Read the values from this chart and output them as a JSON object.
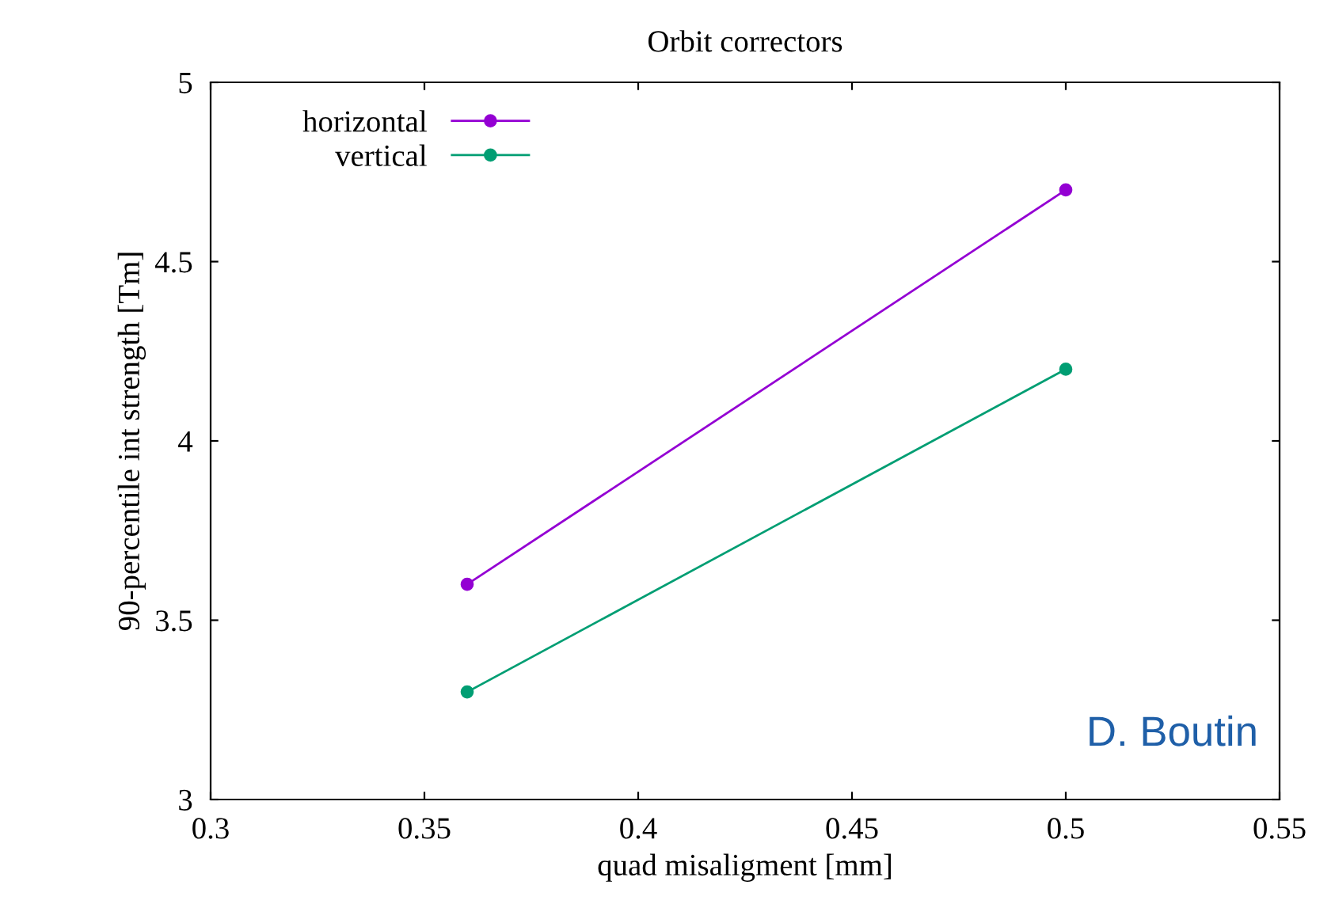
{
  "chart_data": {
    "type": "line",
    "title": "Orbit correctors",
    "xlabel": "quad misaligment [mm]",
    "ylabel": "90-percentile int strength [Tm]",
    "x": [
      0.36,
      0.5
    ],
    "series": [
      {
        "name": "horizontal",
        "color": "#9400d3",
        "values": [
          3.6,
          4.7
        ]
      },
      {
        "name": "vertical",
        "color": "#009e73",
        "values": [
          3.3,
          4.2
        ]
      }
    ],
    "xlim": [
      0.3,
      0.55
    ],
    "xticks": [
      0.3,
      0.35,
      0.4,
      0.45,
      0.5,
      0.55
    ],
    "ylim": [
      3,
      5
    ],
    "yticks": [
      3,
      3.5,
      4,
      4.5,
      5
    ],
    "marker": "circle",
    "line_style": "solid",
    "grid": false,
    "legend": "top left",
    "annotations": [
      "D. Boutin"
    ]
  }
}
